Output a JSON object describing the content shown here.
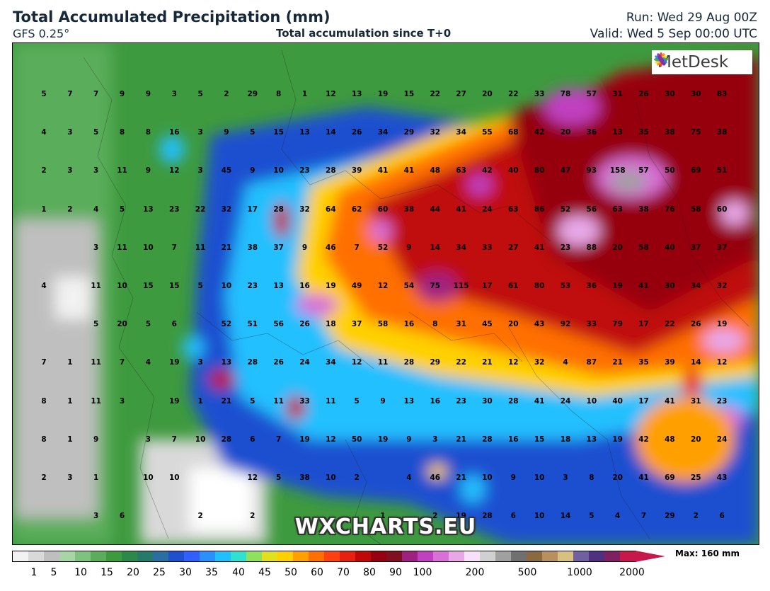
{
  "header": {
    "title": "Total Accumulated Precipitation (mm)",
    "model": "GFS 0.25°",
    "center_subtitle": "Total accumulation since T+0",
    "run": "Run: Wed 29 Aug 00Z",
    "valid": "Valid: Wed 5 Sep 00:00 UTC"
  },
  "logo": {
    "text": "MetDesk",
    "icon": "metdesk-flower-icon"
  },
  "watermark": "WXCHARTS.EU",
  "colorbar": {
    "ticks": [
      "1",
      "5",
      "10",
      "15",
      "20",
      "25",
      "30",
      "35",
      "40",
      "45",
      "50",
      "60",
      "70",
      "80",
      "90",
      "100",
      "200",
      "500",
      "1000",
      "2000"
    ],
    "max_label": "Max: 160 mm",
    "colors": [
      "#f2f2f2",
      "#d9d9d9",
      "#bfbfbf",
      "#a6d5a6",
      "#7fc27f",
      "#5aad5a",
      "#3e9a3e",
      "#2b8a4a",
      "#267a6a",
      "#2a6fa0",
      "#1f50d0",
      "#3060ff",
      "#2a90ff",
      "#20c0ff",
      "#30e0d0",
      "#90e060",
      "#e0e020",
      "#ffd000",
      "#ffa000",
      "#ff7000",
      "#ff4010",
      "#e82010",
      "#c00808",
      "#960010",
      "#801020",
      "#a02080",
      "#c040c0",
      "#d870d8",
      "#e8a8e8",
      "#f8e0f8",
      "#d0d0d0",
      "#a0a0a0",
      "#707070",
      "#8a6a40",
      "#b89060",
      "#d8c080",
      "#7060a0",
      "#503080",
      "#802060",
      "#c8184a"
    ]
  },
  "grid_values": [
    [
      "5",
      "7",
      "7",
      "9",
      "9",
      "3",
      "5",
      "2",
      "29",
      "8",
      "1",
      "12",
      "13",
      "19",
      "15",
      "22",
      "27",
      "20",
      "22",
      "33",
      "78",
      "57",
      "31",
      "26",
      "30",
      "30",
      "83"
    ],
    [
      "4",
      "3",
      "5",
      "8",
      "8",
      "16",
      "3",
      "9",
      "5",
      "15",
      "13",
      "14",
      "26",
      "34",
      "29",
      "32",
      "34",
      "55",
      "68",
      "42",
      "20",
      "36",
      "13",
      "35",
      "38",
      "75",
      "38"
    ],
    [
      "2",
      "3",
      "3",
      "11",
      "9",
      "12",
      "3",
      "45",
      "9",
      "10",
      "23",
      "28",
      "39",
      "41",
      "41",
      "48",
      "63",
      "42",
      "40",
      "80",
      "47",
      "93",
      "158",
      "57",
      "50",
      "69",
      "51"
    ],
    [
      "1",
      "2",
      "4",
      "5",
      "13",
      "23",
      "22",
      "32",
      "17",
      "28",
      "32",
      "64",
      "62",
      "60",
      "38",
      "44",
      "41",
      "24",
      "63",
      "86",
      "52",
      "56",
      "63",
      "38",
      "76",
      "58",
      "60"
    ],
    [
      "",
      "",
      "3",
      "11",
      "10",
      "7",
      "11",
      "21",
      "38",
      "37",
      "9",
      "46",
      "7",
      "52",
      "9",
      "14",
      "34",
      "33",
      "27",
      "41",
      "23",
      "88",
      "20",
      "58",
      "40",
      "37",
      "37"
    ],
    [
      "4",
      "",
      "11",
      "10",
      "15",
      "15",
      "5",
      "10",
      "23",
      "13",
      "16",
      "19",
      "49",
      "12",
      "54",
      "75",
      "115",
      "17",
      "61",
      "80",
      "53",
      "36",
      "19",
      "41",
      "30",
      "34",
      "32"
    ],
    [
      "",
      "",
      "5",
      "20",
      "5",
      "6",
      "",
      "52",
      "51",
      "56",
      "26",
      "18",
      "37",
      "58",
      "16",
      "8",
      "31",
      "45",
      "20",
      "43",
      "92",
      "33",
      "79",
      "17",
      "22",
      "26",
      "19"
    ],
    [
      "7",
      "1",
      "11",
      "7",
      "4",
      "19",
      "3",
      "13",
      "28",
      "26",
      "24",
      "34",
      "12",
      "11",
      "28",
      "29",
      "22",
      "21",
      "12",
      "32",
      "4",
      "87",
      "21",
      "35",
      "39",
      "14",
      "12"
    ],
    [
      "8",
      "1",
      "11",
      "3",
      "",
      "19",
      "1",
      "21",
      "5",
      "11",
      "33",
      "11",
      "5",
      "9",
      "13",
      "16",
      "23",
      "30",
      "28",
      "41",
      "24",
      "10",
      "40",
      "17",
      "41",
      "31",
      "23"
    ],
    [
      "8",
      "1",
      "9",
      "",
      "3",
      "7",
      "10",
      "28",
      "6",
      "7",
      "19",
      "12",
      "50",
      "19",
      "9",
      "3",
      "21",
      "28",
      "16",
      "15",
      "18",
      "13",
      "19",
      "42",
      "48",
      "20",
      "24"
    ],
    [
      "2",
      "3",
      "1",
      "",
      "10",
      "10",
      "",
      "",
      "12",
      "5",
      "38",
      "10",
      "2",
      "",
      "4",
      "46",
      "21",
      "10",
      "9",
      "10",
      "3",
      "8",
      "20",
      "41",
      "69",
      "25",
      "43"
    ],
    [
      "",
      "",
      "3",
      "6",
      "",
      "",
      "2",
      "",
      "2",
      "",
      "",
      "",
      "",
      "1",
      "",
      "2",
      "19",
      "28",
      "6",
      "10",
      "14",
      "5",
      "4",
      "7",
      "29",
      "2",
      "6"
    ]
  ]
}
